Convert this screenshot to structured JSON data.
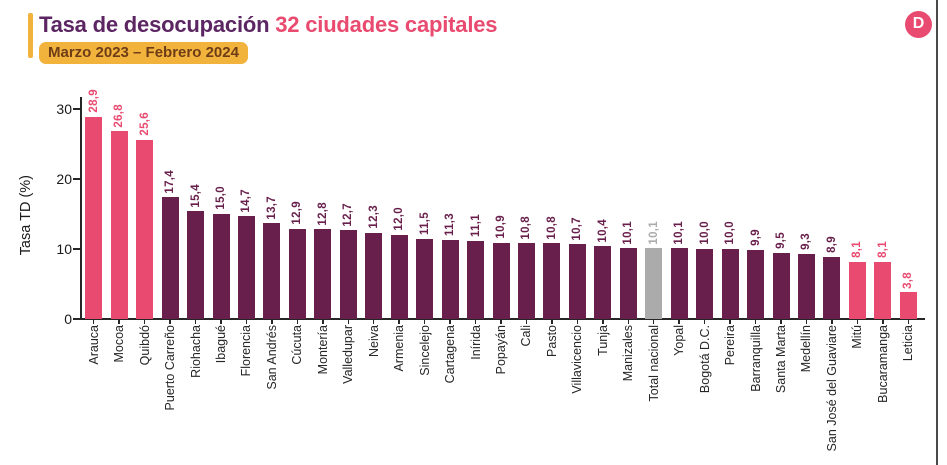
{
  "header": {
    "title_primary": "Tasa de desocupación",
    "title_secondary": "32 ciudades capitales",
    "subtitle_badge": "Marzo 2023 – Febrero 2024",
    "logo_letter": "D",
    "accent_color": "#F2B33D",
    "brand_pink": "#E94A6F",
    "brand_purple": "#5C2662"
  },
  "chart_data": {
    "type": "bar",
    "title": "Tasa de desocupación 32 ciudades capitales",
    "subtitle": "Marzo 2023 – Febrero 2024",
    "ylabel": "Tasa TD (%)",
    "xlabel": "",
    "ylim": [
      0,
      31
    ],
    "yticks": [
      0,
      10,
      20,
      30
    ],
    "grid": false,
    "legend": "none",
    "value_label_rotation": 90,
    "category_label_rotation": 90,
    "palette": {
      "pink": "#E94A6F",
      "dark": "#681F4B",
      "gray": "#ABABAB"
    },
    "categories": [
      "Arauca",
      "Mocoa",
      "Quibdó",
      "Puerto Carreño",
      "Riohacha",
      "Ibagué",
      "Florencia",
      "San Andrés",
      "Cúcuta",
      "Montería",
      "Valledupar",
      "Neiva",
      "Armenia",
      "Sincelejo",
      "Cartagena",
      "Inírida",
      "Popayán",
      "Cali",
      "Pasto",
      "Villavicencio",
      "Tunja",
      "Manizales",
      "Total nacional",
      "Yopal",
      "Bogotá D.C.",
      "Pereira",
      "Barranquilla",
      "Santa Marta",
      "Medellín",
      "San José del Guaviare",
      "Mitú",
      "Bucaramanga",
      "Leticia"
    ],
    "values": [
      28.9,
      26.8,
      25.6,
      17.4,
      15.4,
      15.0,
      14.7,
      13.7,
      12.9,
      12.8,
      12.7,
      12.3,
      12.0,
      11.5,
      11.3,
      11.1,
      10.9,
      10.8,
      10.8,
      10.7,
      10.4,
      10.1,
      10.1,
      10.1,
      10.0,
      10.0,
      9.9,
      9.5,
      9.3,
      8.9,
      8.1,
      8.1,
      3.8
    ],
    "value_labels": [
      "28,9",
      "26,8",
      "25,6",
      "17,4",
      "15,4",
      "15,0",
      "14,7",
      "13,7",
      "12,9",
      "12,8",
      "12,7",
      "12,3",
      "12,0",
      "11,5",
      "11,3",
      "11,1",
      "10,9",
      "10,8",
      "10,8",
      "10,7",
      "10,4",
      "10,1",
      "10,1",
      "10,1",
      "10,0",
      "10,0",
      "9,9",
      "9,5",
      "9,3",
      "8,9",
      "8,1",
      "8,1",
      "3,8"
    ],
    "colors": [
      "pink",
      "pink",
      "pink",
      "dark",
      "dark",
      "dark",
      "dark",
      "dark",
      "dark",
      "dark",
      "dark",
      "dark",
      "dark",
      "dark",
      "dark",
      "dark",
      "dark",
      "dark",
      "dark",
      "dark",
      "dark",
      "dark",
      "gray",
      "dark",
      "dark",
      "dark",
      "dark",
      "dark",
      "dark",
      "dark",
      "pink",
      "pink",
      "pink"
    ]
  }
}
